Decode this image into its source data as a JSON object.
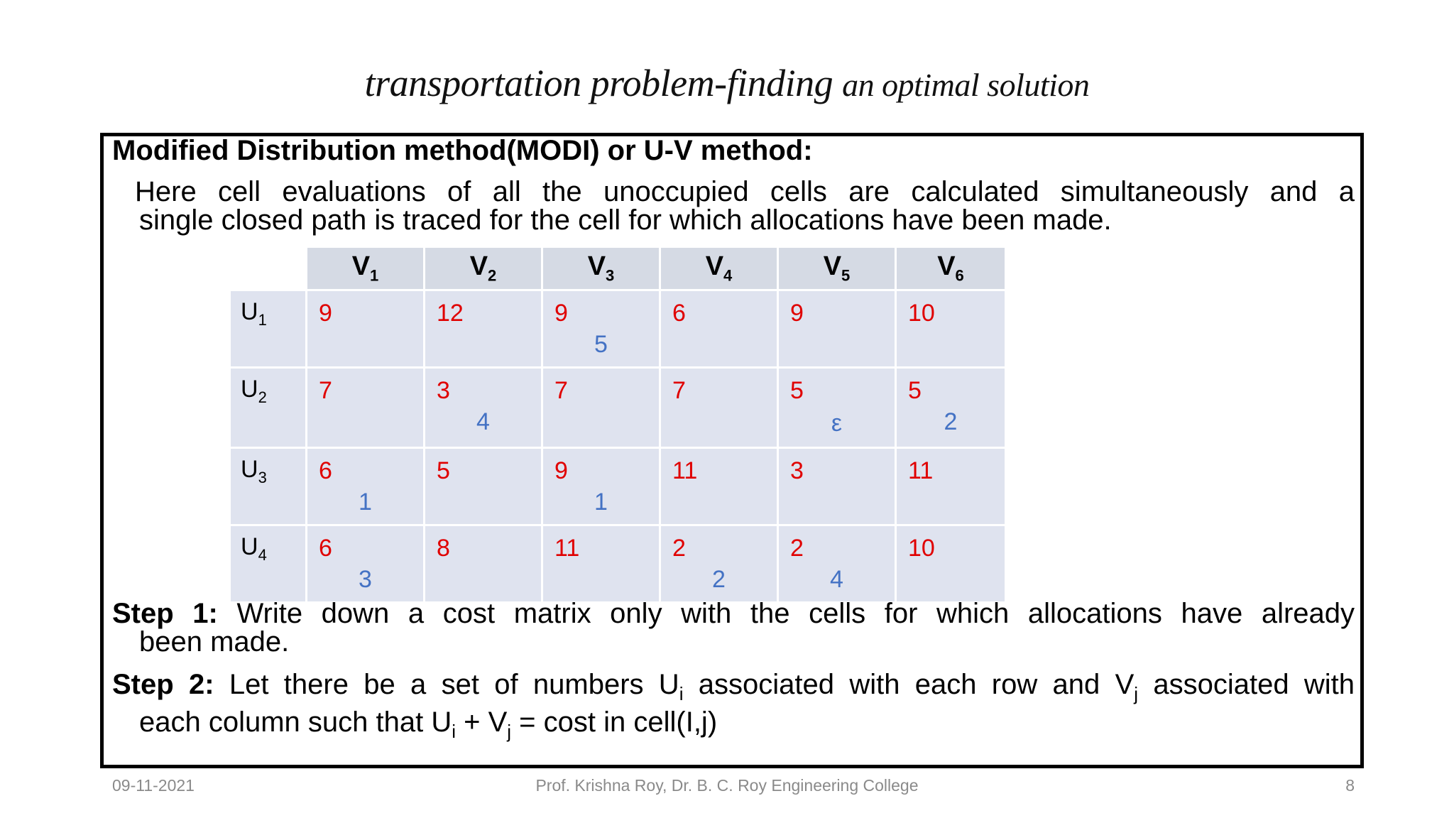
{
  "title": {
    "part1": "transportation problem-finding",
    "part2": "an optimal solution"
  },
  "heading": "Modified Distribution method(MODI) or U-V method:",
  "paragraph": {
    "line1": "Here cell evaluations of all the unoccupied cells are calculated simultaneously and a",
    "line2": "single closed path is traced for  the cell for which allocations have  been made."
  },
  "table": {
    "columns": [
      {
        "base": "V",
        "sub": "1"
      },
      {
        "base": "V",
        "sub": "2"
      },
      {
        "base": "V",
        "sub": "3"
      },
      {
        "base": "V",
        "sub": "4"
      },
      {
        "base": "V",
        "sub": "5"
      },
      {
        "base": "V",
        "sub": "6"
      }
    ],
    "rows": [
      {
        "base": "U",
        "sub": "1",
        "cells": [
          {
            "cost": "9",
            "alloc": ""
          },
          {
            "cost": "12",
            "alloc": ""
          },
          {
            "cost": "9",
            "alloc": "5"
          },
          {
            "cost": "6",
            "alloc": ""
          },
          {
            "cost": "9",
            "alloc": ""
          },
          {
            "cost": "10",
            "alloc": ""
          }
        ]
      },
      {
        "base": "U",
        "sub": "2",
        "cells": [
          {
            "cost": "7",
            "alloc": ""
          },
          {
            "cost": "3",
            "alloc": "4"
          },
          {
            "cost": "7",
            "alloc": ""
          },
          {
            "cost": "7",
            "alloc": ""
          },
          {
            "cost": "5",
            "alloc": "ε"
          },
          {
            "cost": "5",
            "alloc": "2"
          }
        ]
      },
      {
        "base": "U",
        "sub": "3",
        "cells": [
          {
            "cost": "6",
            "alloc": "1"
          },
          {
            "cost": "5",
            "alloc": ""
          },
          {
            "cost": "9",
            "alloc": "1"
          },
          {
            "cost": "11",
            "alloc": ""
          },
          {
            "cost": "3",
            "alloc": ""
          },
          {
            "cost": "11",
            "alloc": ""
          }
        ]
      },
      {
        "base": "U",
        "sub": "4",
        "cells": [
          {
            "cost": "6",
            "alloc": "3"
          },
          {
            "cost": "8",
            "alloc": ""
          },
          {
            "cost": "11",
            "alloc": ""
          },
          {
            "cost": "2",
            "alloc": "2"
          },
          {
            "cost": "2",
            "alloc": "4"
          },
          {
            "cost": "10",
            "alloc": ""
          }
        ]
      }
    ]
  },
  "step1": {
    "label": "Step 1:",
    "line1": "Write down a cost matrix only with the cells for which allocations have already",
    "line2": "been made."
  },
  "step2": {
    "label": "Step 2:",
    "text_a": "Let there be a set of numbers U",
    "sub_i": "i",
    "text_b": " associated with each row and V",
    "sub_j": "j",
    "text_c": " associated with",
    "line2_a": "each column such that U",
    "line2_b": " + V",
    "line2_c": " = cost in cell(I,j)"
  },
  "footer": {
    "date": "09-11-2021",
    "author": "Prof. Krishna Roy, Dr. B. C. Roy Engineering College",
    "page": "8"
  },
  "colors": {
    "cost": "#e00000",
    "allocation": "#4472c4",
    "header_bg": "#d5dae4",
    "cell_bg": "#dfe3ef"
  }
}
